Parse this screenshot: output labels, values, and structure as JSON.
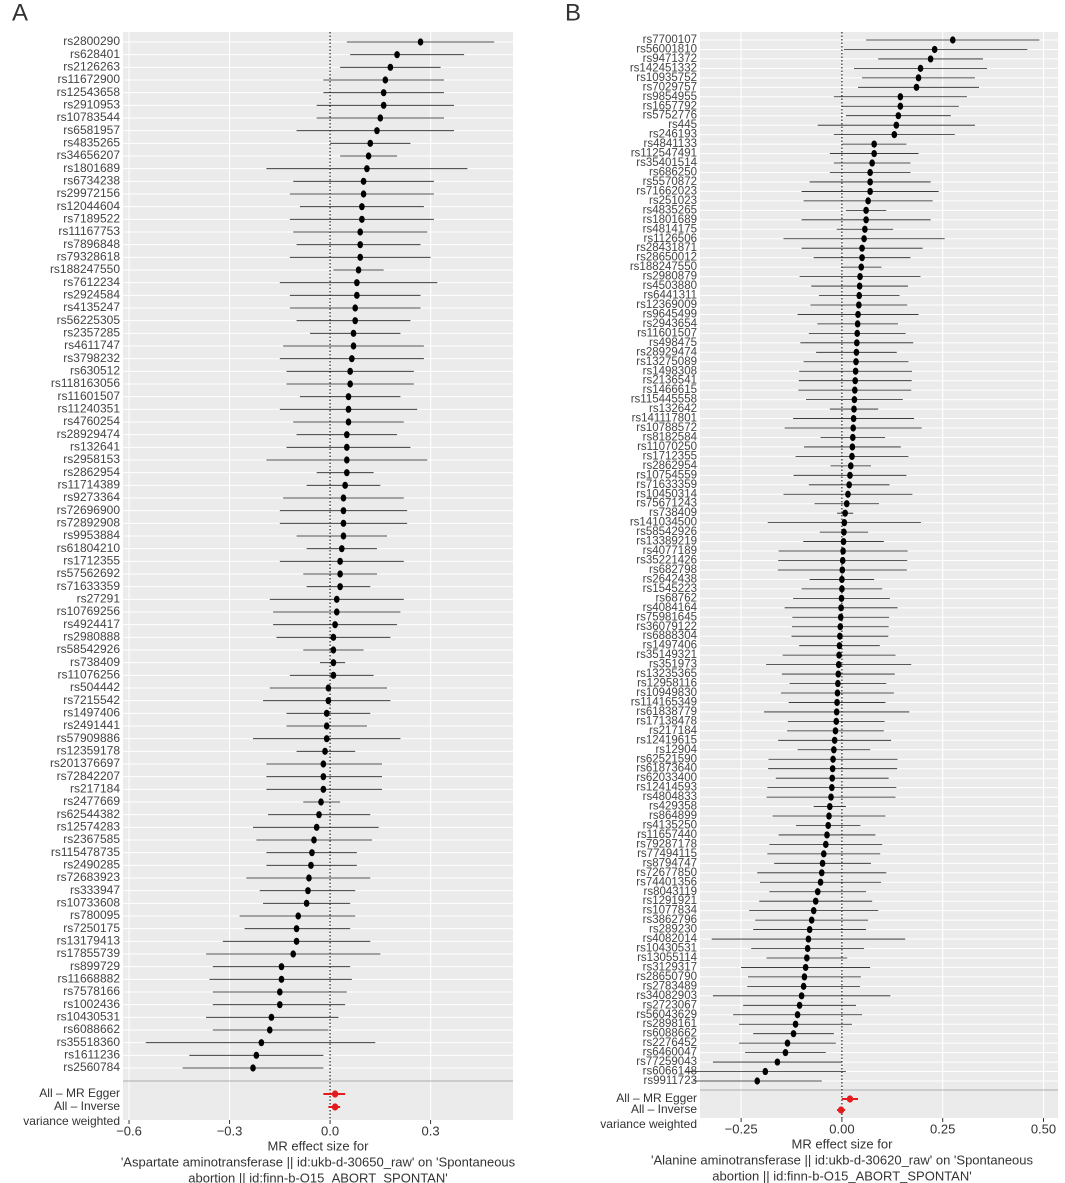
{
  "chart_data": [
    {
      "type": "forest",
      "panel_label": "A",
      "categories": [
        "rs2800290",
        "rs628401",
        "rs2126263",
        "rs11672900",
        "rs12543658",
        "rs2910953",
        "rs10783544",
        "rs6581957",
        "rs4835265",
        "rs34656207",
        "rs1801689",
        "rs6734238",
        "rs29972156",
        "rs12044604",
        "rs7189522",
        "rs11167753",
        "rs7896848",
        "rs79328618",
        "rs188247550",
        "rs7612234",
        "rs2924584",
        "rs4135247",
        "rs56225305",
        "rs2357285",
        "rs4611747",
        "rs3798232",
        "rs630512",
        "rs118163056",
        "rs11601507",
        "rs11240351",
        "rs4760254",
        "rs28929474",
        "rs132641",
        "rs2958153",
        "rs2862954",
        "rs11714389",
        "rs9273364",
        "rs72696900",
        "rs72892908",
        "rs9953884",
        "rs61804210",
        "rs1712355",
        "rs57562692",
        "rs71633359",
        "rs27291",
        "rs10769256",
        "rs4924417",
        "rs2980888",
        "rs58542926",
        "rs738409",
        "rs11076256",
        "rs504442",
        "rs7215542",
        "rs1497406",
        "rs2491441",
        "rs57909886",
        "rs12359178",
        "rs201376697",
        "rs72842207",
        "rs217184",
        "rs2477669",
        "rs62544382",
        "rs12574283",
        "rs2367585",
        "rs115478735",
        "rs2490285",
        "rs72683923",
        "rs333947",
        "rs10733608",
        "rs780095",
        "rs7250175",
        "rs13179413",
        "rs17855739",
        "rs899729",
        "rs11668882",
        "rs7578166",
        "rs1002436",
        "rs10430531",
        "rs6088662",
        "rs35518360",
        "rs1611236",
        "rs2560784"
      ],
      "values": [
        0.27,
        0.2,
        0.18,
        0.165,
        0.16,
        0.16,
        0.15,
        0.14,
        0.12,
        0.115,
        0.11,
        0.1,
        0.1,
        0.095,
        0.095,
        0.09,
        0.09,
        0.09,
        0.085,
        0.08,
        0.08,
        0.075,
        0.075,
        0.07,
        0.07,
        0.065,
        0.06,
        0.06,
        0.055,
        0.055,
        0.055,
        0.05,
        0.05,
        0.05,
        0.05,
        0.045,
        0.04,
        0.04,
        0.04,
        0.04,
        0.035,
        0.03,
        0.03,
        0.03,
        0.02,
        0.02,
        0.015,
        0.01,
        0.01,
        0.01,
        0.01,
        -0.005,
        -0.005,
        -0.01,
        -0.01,
        -0.01,
        -0.015,
        -0.02,
        -0.02,
        -0.02,
        -0.027,
        -0.033,
        -0.04,
        -0.048,
        -0.054,
        -0.057,
        -0.063,
        -0.066,
        -0.07,
        -0.095,
        -0.1,
        -0.1,
        -0.11,
        -0.145,
        -0.145,
        -0.15,
        -0.15,
        -0.175,
        -0.18,
        -0.205,
        -0.22,
        -0.23
      ],
      "lower": [
        0.05,
        0.06,
        0.03,
        -0.02,
        -0.02,
        -0.04,
        -0.04,
        -0.1,
        0,
        0.03,
        -0.19,
        -0.11,
        -0.12,
        -0.09,
        -0.12,
        -0.11,
        -0.1,
        -0.12,
        0.01,
        -0.15,
        -0.12,
        -0.12,
        -0.1,
        -0.06,
        -0.14,
        -0.15,
        -0.13,
        -0.13,
        -0.09,
        -0.15,
        -0.11,
        -0.1,
        -0.13,
        -0.19,
        -0.04,
        -0.07,
        -0.14,
        -0.15,
        -0.15,
        -0.1,
        -0.07,
        -0.15,
        -0.08,
        -0.07,
        -0.18,
        -0.17,
        -0.17,
        -0.16,
        -0.08,
        -0.03,
        -0.12,
        -0.18,
        -0.2,
        -0.13,
        -0.13,
        -0.23,
        -0.1,
        -0.19,
        -0.19,
        -0.19,
        -0.08,
        -0.185,
        -0.23,
        -0.22,
        -0.19,
        -0.19,
        -0.25,
        -0.21,
        -0.2,
        -0.27,
        -0.255,
        -0.32,
        -0.37,
        -0.35,
        -0.36,
        -0.35,
        -0.35,
        -0.37,
        -0.35,
        -0.55,
        -0.42,
        -0.44
      ],
      "upper": [
        0.49,
        0.4,
        0.33,
        0.34,
        0.34,
        0.37,
        0.34,
        0.37,
        0.24,
        0.2,
        0.41,
        0.31,
        0.31,
        0.28,
        0.31,
        0.29,
        0.27,
        0.3,
        0.16,
        0.32,
        0.27,
        0.27,
        0.24,
        0.21,
        0.28,
        0.28,
        0.25,
        0.25,
        0.21,
        0.26,
        0.22,
        0.2,
        0.24,
        0.29,
        0.13,
        0.15,
        0.22,
        0.23,
        0.23,
        0.17,
        0.14,
        0.22,
        0.14,
        0.12,
        0.22,
        0.21,
        0.2,
        0.18,
        0.1,
        0.045,
        0.13,
        0.17,
        0.18,
        0.12,
        0.11,
        0.21,
        0.075,
        0.155,
        0.155,
        0.155,
        0.03,
        0.12,
        0.145,
        0.125,
        0.08,
        0.08,
        0.12,
        0.075,
        0.06,
        0.075,
        0.06,
        0.12,
        0.15,
        0.06,
        0.065,
        0.05,
        0.045,
        0.025,
        -0.005,
        0.135,
        -0.02,
        -0.02
      ],
      "color": "#000000",
      "summary": [
        {
          "label_lines": [
            "All – MR Egger"
          ],
          "value": 0.015,
          "lower": -0.02,
          "upper": 0.045
        },
        {
          "label_lines": [
            "All – Inverse",
            "variance weighted"
          ],
          "value": 0.015,
          "lower": -0.005,
          "upper": 0.03
        }
      ],
      "summary_color": "#e41a1c",
      "xlim": [
        -0.618,
        0.546
      ],
      "xticks": [
        {
          "value": -0.6,
          "label": "−0.6"
        },
        {
          "value": -0.3,
          "label": "−0.3"
        },
        {
          "value": 0,
          "label": "0.0"
        },
        0.3
      ],
      "xlabel_lines": [
        "MR effect size for",
        "'Aspartate aminotransferase || id:ukb-d-30650_raw' on 'Spontaneous",
        "abortion || id:finn-b-O15_ABORT_SPONTAN'"
      ],
      "grid": true
    },
    {
      "type": "forest",
      "panel_label": "B",
      "categories": [
        "rs7700107",
        "rs56001810",
        "rs9471372",
        "rs142451332",
        "rs10935752",
        "rs7029757",
        "rs9854955",
        "rs1657792",
        "rs5752776",
        "rs445",
        "rs246193",
        "rs4841133",
        "rs112547491",
        "rs35401514",
        "rs686250",
        "rs5570872",
        "rs71662023",
        "rs251023",
        "rs4835265",
        "rs1801689",
        "rs4814175",
        "rs1126506",
        "rs28431871",
        "rs28650012",
        "rs188247550",
        "rs2980879",
        "rs4503880",
        "rs6441311",
        "rs12369009",
        "rs9645499",
        "rs2943654",
        "rs11601507",
        "rs498475",
        "rs28929474",
        "rs13275089",
        "rs1498308",
        "rs2136541",
        "rs1466615",
        "rs115445558",
        "rs132642",
        "rs141117801",
        "rs10788572",
        "rs8182584",
        "rs11070250",
        "rs1712355",
        "rs2862954",
        "rs10754559",
        "rs71633359",
        "rs10450314",
        "rs75671243",
        "rs738409",
        "rs141034500",
        "rs58542926",
        "rs13389219",
        "rs4077189",
        "rs35221426",
        "rs682798",
        "rs2642438",
        "rs1545223",
        "rs68762",
        "rs4084164",
        "rs75981645",
        "rs36079122",
        "rs6888304",
        "rs1497406",
        "rs35149321",
        "rs351973",
        "rs13235365",
        "rs12958116",
        "rs10949830",
        "rs114165349",
        "rs61838779",
        "rs17138478",
        "rs217184",
        "rs12419615",
        "rs12904",
        "rs62521590",
        "rs61873640",
        "rs62033400",
        "rs12414593",
        "rs4804833",
        "rs429358",
        "rs864899",
        "rs4135250",
        "rs11657440",
        "rs79287178",
        "rs77494115",
        "rs8794747",
        "rs72677850",
        "rs74401356",
        "rs8043119",
        "rs1291921",
        "rs1077834",
        "rs3862796",
        "rs289230",
        "rs4082014",
        "rs10430531",
        "rs13055114",
        "rs3129317",
        "rs28650790",
        "rs2783489",
        "rs34082903",
        "rs2723067",
        "rs56043629",
        "rs2898161",
        "rs6088662",
        "rs2276452",
        "rs6460047",
        "rs77259043",
        "rs6066148",
        "rs9911723"
      ],
      "values": [
        0.275,
        0.23,
        0.22,
        0.195,
        0.19,
        0.185,
        0.145,
        0.145,
        0.14,
        0.135,
        0.13,
        0.08,
        0.08,
        0.075,
        0.07,
        0.07,
        0.07,
        0.065,
        0.06,
        0.06,
        0.057,
        0.055,
        0.05,
        0.05,
        0.048,
        0.045,
        0.044,
        0.043,
        0.042,
        0.04,
        0.039,
        0.038,
        0.037,
        0.036,
        0.035,
        0.034,
        0.033,
        0.032,
        0.031,
        0.03,
        0.029,
        0.028,
        0.027,
        0.026,
        0.025,
        0.022,
        0.02,
        0.018,
        0.015,
        0.012,
        0.008,
        0.006,
        0.005,
        0.004,
        0.003,
        0.002,
        0.001,
        0,
        0,
        -0.001,
        -0.002,
        -0.003,
        -0.004,
        -0.005,
        -0.006,
        -0.007,
        -0.008,
        -0.009,
        -0.01,
        -0.011,
        -0.012,
        -0.013,
        -0.014,
        -0.016,
        -0.018,
        -0.02,
        -0.022,
        -0.023,
        -0.024,
        -0.025,
        -0.027,
        -0.03,
        -0.032,
        -0.034,
        -0.037,
        -0.04,
        -0.045,
        -0.048,
        -0.05,
        -0.053,
        -0.06,
        -0.065,
        -0.07,
        -0.075,
        -0.08,
        -0.083,
        -0.085,
        -0.087,
        -0.09,
        -0.093,
        -0.095,
        -0.1,
        -0.105,
        -0.11,
        -0.115,
        -0.12,
        -0.135,
        -0.14,
        -0.16,
        -0.19,
        -0.21
      ],
      "lower": [
        0.06,
        0.005,
        0.09,
        0.03,
        0.05,
        0.04,
        -0.02,
        0,
        0.01,
        -0.06,
        -0.02,
        0,
        -0.03,
        -0.02,
        -0.03,
        -0.08,
        -0.1,
        -0.095,
        0.01,
        -0.1,
        -0.013,
        -0.145,
        -0.1,
        -0.07,
        -0.002,
        -0.105,
        -0.076,
        -0.057,
        -0.078,
        -0.11,
        -0.061,
        -0.082,
        -0.103,
        -0.064,
        -0.095,
        -0.106,
        -0.107,
        -0.108,
        -0.089,
        -0.03,
        -0.121,
        -0.142,
        -0.053,
        -0.094,
        -0.115,
        -0.028,
        -0.12,
        -0.082,
        -0.145,
        -0.068,
        -0.012,
        -0.184,
        -0.055,
        -0.096,
        -0.157,
        -0.158,
        -0.159,
        -0.08,
        -0.1,
        -0.121,
        -0.142,
        -0.123,
        -0.124,
        -0.125,
        -0.106,
        -0.147,
        -0.188,
        -0.149,
        -0.13,
        -0.151,
        -0.132,
        -0.193,
        -0.134,
        -0.136,
        -0.158,
        -0.11,
        -0.182,
        -0.183,
        -0.164,
        -0.185,
        -0.187,
        -0.07,
        -0.172,
        -0.114,
        -0.157,
        -0.18,
        -0.185,
        -0.168,
        -0.21,
        -0.203,
        -0.18,
        -0.205,
        -0.23,
        -0.215,
        -0.22,
        -0.323,
        -0.225,
        -0.187,
        -0.25,
        -0.233,
        -0.235,
        -0.32,
        -0.245,
        -0.27,
        -0.255,
        -0.22,
        -0.255,
        -0.24,
        -0.32,
        -0.39,
        -0.37
      ],
      "upper": [
        0.49,
        0.46,
        0.35,
        0.36,
        0.33,
        0.34,
        0.31,
        0.29,
        0.27,
        0.33,
        0.28,
        0.16,
        0.19,
        0.17,
        0.17,
        0.22,
        0.24,
        0.225,
        0.11,
        0.22,
        0.127,
        0.255,
        0.2,
        0.17,
        0.098,
        0.195,
        0.164,
        0.143,
        0.162,
        0.19,
        0.139,
        0.158,
        0.177,
        0.136,
        0.165,
        0.174,
        0.173,
        0.172,
        0.151,
        0.09,
        0.179,
        0.198,
        0.107,
        0.146,
        0.165,
        0.072,
        0.16,
        0.118,
        0.175,
        0.092,
        0.028,
        0.196,
        0.065,
        0.104,
        0.163,
        0.162,
        0.161,
        0.08,
        0.1,
        0.119,
        0.138,
        0.117,
        0.116,
        0.115,
        0.094,
        0.133,
        0.172,
        0.131,
        0.11,
        0.129,
        0.108,
        0.167,
        0.106,
        0.104,
        0.122,
        0.07,
        0.138,
        0.137,
        0.116,
        0.135,
        0.133,
        0.01,
        0.108,
        0.046,
        0.083,
        0.1,
        0.095,
        0.072,
        0.11,
        0.097,
        0.06,
        0.075,
        0.09,
        0.065,
        0.06,
        0.157,
        0.055,
        0.013,
        0.07,
        0.047,
        0.045,
        0.12,
        0.035,
        0.05,
        0.025,
        -0.02,
        -0.015,
        -0.04,
        0,
        0.01,
        -0.05
      ],
      "color": "#000000",
      "summary": [
        {
          "label_lines": [
            "All – MR Egger"
          ],
          "value": 0.02,
          "lower": 0,
          "upper": 0.04
        },
        {
          "label_lines": [
            "All – Inverse",
            "variance weighted"
          ],
          "value": -0.002,
          "lower": -0.012,
          "upper": 0.008
        }
      ],
      "summary_color": "#e41a1c",
      "xlim": [
        -0.352,
        0.536
      ],
      "xticks": [
        {
          "value": -0.25,
          "label": "−0.25"
        },
        {
          "value": 0,
          "label": "0.00"
        },
        0.25,
        {
          "value": 0.5,
          "label": "0.50"
        }
      ],
      "xlabel_lines": [
        "MR effect size for",
        "'Alanine aminotransferase || id:ukb-d-30620_raw' on 'Spontaneous",
        "abortion || id:finn-b-O15_ABORT_SPONTAN'"
      ],
      "grid": true
    }
  ]
}
